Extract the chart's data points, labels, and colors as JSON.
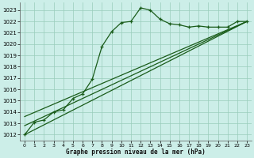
{
  "title": "Graphe pression niveau de la mer (hPa)",
  "background_color": "#cceee8",
  "grid_color": "#99ccbb",
  "line_color": "#1a5c1a",
  "xlim": [
    -0.5,
    23.5
  ],
  "ylim": [
    1011.5,
    1023.7
  ],
  "xticks": [
    0,
    1,
    2,
    3,
    4,
    5,
    6,
    7,
    8,
    9,
    10,
    11,
    12,
    13,
    14,
    15,
    16,
    17,
    18,
    19,
    20,
    21,
    22,
    23
  ],
  "yticks": [
    1012,
    1013,
    1014,
    1015,
    1016,
    1017,
    1018,
    1019,
    1020,
    1021,
    1022,
    1023
  ],
  "main_x": [
    0,
    1,
    2,
    3,
    4,
    5,
    6,
    7,
    8,
    9,
    10,
    11,
    12,
    13,
    14,
    15,
    16,
    17,
    18,
    19,
    20,
    21,
    22,
    23
  ],
  "main_y": [
    1012.0,
    1013.1,
    1013.3,
    1014.0,
    1014.2,
    1015.2,
    1015.6,
    1016.9,
    1019.8,
    1021.1,
    1021.9,
    1022.0,
    1023.2,
    1023.0,
    1022.2,
    1021.8,
    1021.7,
    1021.5,
    1021.6,
    1021.5,
    1021.5,
    1021.5,
    1022.0,
    1022.0
  ],
  "trend_lines": [
    {
      "x0": 0,
      "y0": 1012.0,
      "x1": 23,
      "y1": 1022.0
    },
    {
      "x0": 0,
      "y0": 1012.8,
      "x1": 23,
      "y1": 1022.0
    },
    {
      "x0": 0,
      "y0": 1013.6,
      "x1": 23,
      "y1": 1022.0
    }
  ]
}
